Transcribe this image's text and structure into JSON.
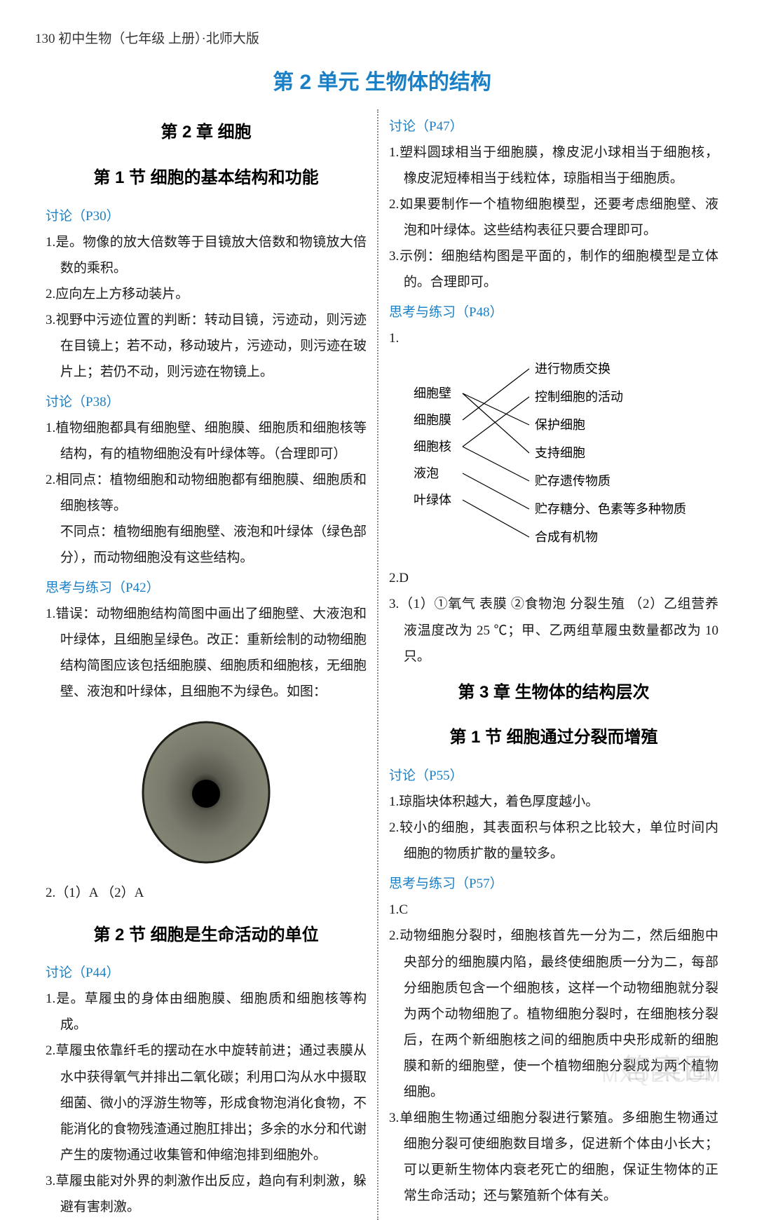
{
  "header": "130  初中生物（七年级   上册）·北师大版",
  "unit_title": "第 2 单元   生物体的结构",
  "left": {
    "chapter": "第 2 章   细胞",
    "section1": "第 1 节   细胞的基本结构和功能",
    "discuss_p30": "讨论（P30）",
    "p30_1": "1.是。物像的放大倍数等于目镜放大倍数和物镜放大倍数的乘积。",
    "p30_2": "2.应向左上方移动装片。",
    "p30_3": "3.视野中污迹位置的判断：转动目镜，污迹动，则污迹在目镜上；若不动，移动玻片，污迹动，则污迹在玻片上；若仍不动，则污迹在物镜上。",
    "discuss_p38": "讨论（P38）",
    "p38_1": "1.植物细胞都具有细胞壁、细胞膜、细胞质和细胞核等结构，有的植物细胞没有叶绿体等。（合理即可）",
    "p38_2": "2.相同点：植物细胞和动物细胞都有细胞膜、细胞质和细胞核等。",
    "p38_2b": "不同点：植物细胞有细胞壁、液泡和叶绿体（绿色部分），而动物细胞没有这些结构。",
    "think_p42": "思考与练习（P42）",
    "p42_1": "1.错误：动物细胞结构简图中画出了细胞壁、大液泡和叶绿体，且细胞呈绿色。改正：重新绘制的动物细胞结构简图应该包括细胞膜、细胞质和细胞核，无细胞壁、液泡和叶绿体，且细胞不为绿色。如图：",
    "p42_2": "2.（1）A   （2）A",
    "section2": "第 2 节   细胞是生命活动的单位",
    "discuss_p44": "讨论（P44）",
    "p44_1": "1.是。草履虫的身体由细胞膜、细胞质和细胞核等构成。",
    "p44_2": "2.草履虫依靠纤毛的摆动在水中旋转前进；通过表膜从水中获得氧气并排出二氧化碳；利用口沟从水中摄取细菌、微小的浮游生物等，形成食物泡消化食物，不能消化的食物残渣通过胞肛排出；多余的水分和代谢产生的废物通过收集管和伸缩泡排到细胞外。",
    "p44_3": "3.草履虫能对外界的刺激作出反应，趋向有利刺激，躲避有害刺激。"
  },
  "right": {
    "discuss_p47": "讨论（P47）",
    "p47_1": "1.塑料圆球相当于细胞膜，橡皮泥小球相当于细胞核，橡皮泥短棒相当于线粒体，琼脂相当于细胞质。",
    "p47_2": "2.如果要制作一个植物细胞模型，还要考虑细胞壁、液泡和叶绿体。这些结构表征只要合理即可。",
    "p47_3": "3.示例：细胞结构图是平面的，制作的细胞模型是立体的。合理即可。",
    "think_p48": "思考与练习（P48）",
    "p48_1": "1.",
    "diagram": {
      "left_labels": [
        "细胞壁",
        "细胞膜",
        "细胞核",
        "液泡",
        "叶绿体"
      ],
      "right_labels": [
        "进行物质交换",
        "控制细胞的活动",
        "保护细胞",
        "支持细胞",
        "贮存遗传物质",
        "贮存糖分、色素等多种物质",
        "合成有机物"
      ],
      "connections": [
        [
          0,
          2
        ],
        [
          0,
          3
        ],
        [
          1,
          0
        ],
        [
          2,
          1
        ],
        [
          2,
          4
        ],
        [
          3,
          5
        ],
        [
          4,
          6
        ]
      ],
      "line_color": "#000000",
      "font_size": 18
    },
    "p48_2": "2.D",
    "p48_3": "3.（1）①氧气   表膜   ②食物泡   分裂生殖   （2）乙组营养液温度改为 25 ℃；甲、乙两组草履虫数量都改为 10 只。",
    "chapter3": "第 3 章   生物体的结构层次",
    "section3_1": "第 1 节   细胞通过分裂而增殖",
    "discuss_p55": "讨论（P55）",
    "p55_1": "1.琼脂块体积越大，着色厚度越小。",
    "p55_2": "2.较小的细胞，其表面积与体积之比较大，单位时间内细胞的物质扩散的量较多。",
    "think_p57": "思考与练习（P57）",
    "p57_1": "1.C",
    "p57_2": "2.动物细胞分裂时，细胞核首先一分为二，然后细胞中央部分的细胞膜内陷，最终使细胞质一分为二，每部分细胞质包含一个细胞核，这样一个动物细胞就分裂为两个动物细胞了。植物细胞分裂时，在细胞核分裂后，在两个新细胞核之间的细胞质中央形成新的细胞膜和新的细胞壁，使一个植物细胞分裂成为两个植物细胞。",
    "p57_3": "3.单细胞生物通过细胞分裂进行繁殖。多细胞生物通过细胞分裂可使细胞数目增多，促进新个体由小长大；可以更新生物体内衰老死亡的细胞，保证生物体的正常生命活动；还与繁殖新个体有关。"
  },
  "watermark_cn": "答案圈",
  "watermark_en": "MXQE.COM",
  "cell_image_colors": {
    "membrane": "#3a3a35",
    "cytoplasm": "#6b6b5f",
    "nucleus": "#0a0a08"
  }
}
